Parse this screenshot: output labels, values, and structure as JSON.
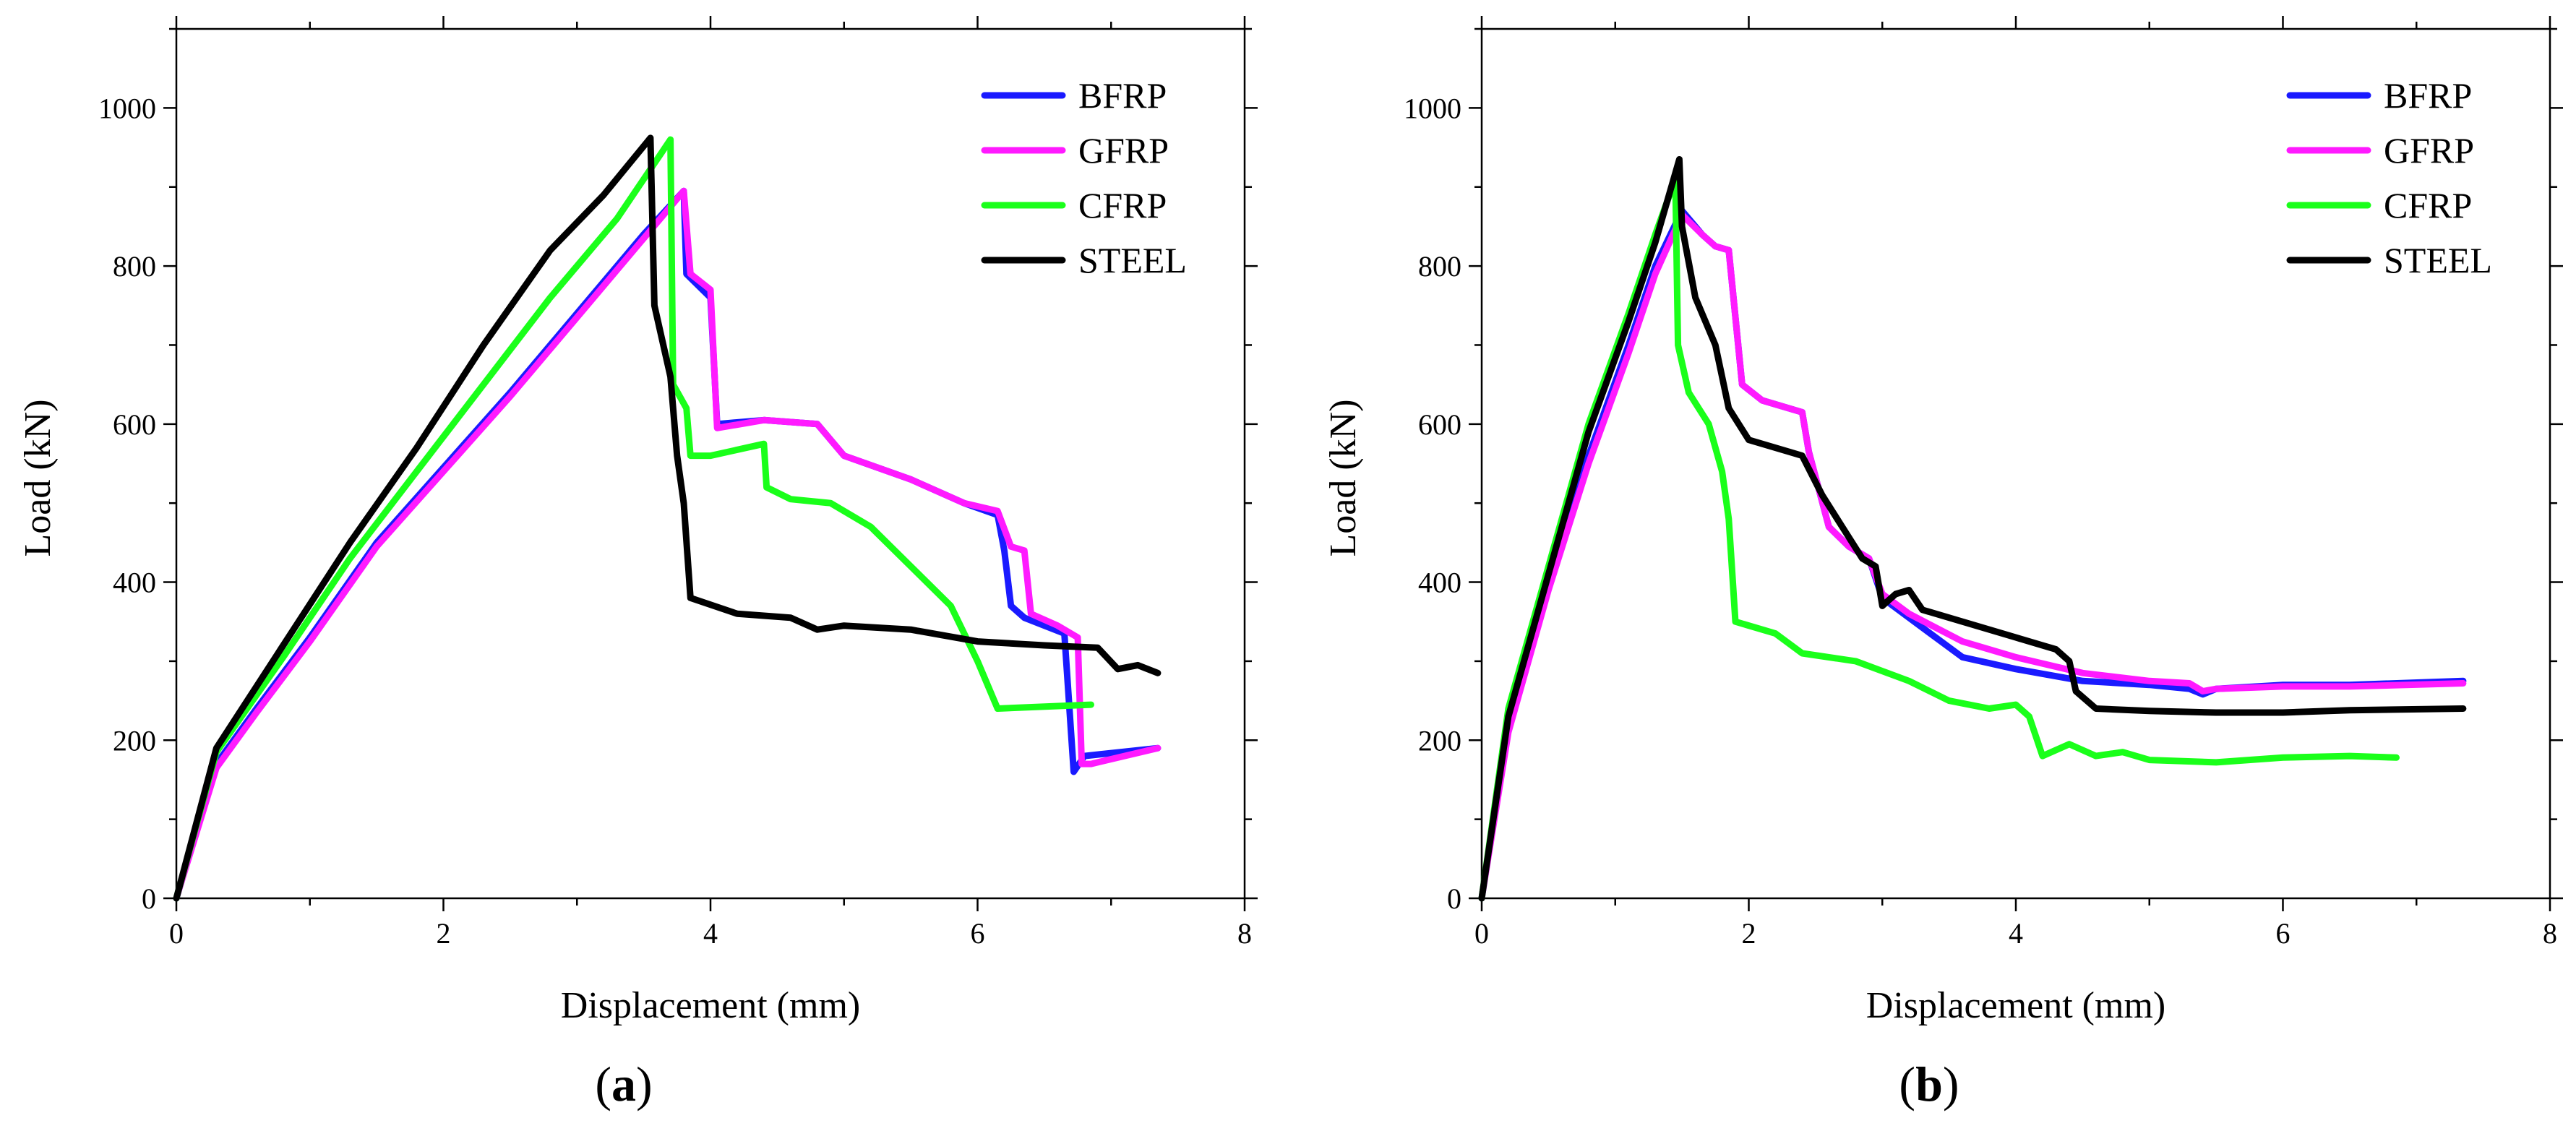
{
  "chart_data": [
    {
      "type": "line",
      "panel_label": "a",
      "xlabel": "Displacement (mm)",
      "ylabel": "Load (kN)",
      "xlim": [
        0,
        8
      ],
      "ylim": [
        0,
        1100
      ],
      "xticks": [
        "0",
        "2",
        "4",
        "6",
        "8"
      ],
      "yticks": [
        "0",
        "200",
        "400",
        "600",
        "800",
        "1000"
      ],
      "legend_position": "top-right",
      "series": [
        {
          "name": "BFRP",
          "color": "#1a1aff",
          "points": [
            [
              0,
              0
            ],
            [
              0.3,
              170
            ],
            [
              0.6,
              240
            ],
            [
              1.0,
              330
            ],
            [
              1.5,
              450
            ],
            [
              2.0,
              545
            ],
            [
              2.5,
              640
            ],
            [
              3.0,
              740
            ],
            [
              3.5,
              840
            ],
            [
              3.8,
              895
            ],
            [
              3.82,
              790
            ],
            [
              4.0,
              760
            ],
            [
              4.05,
              600
            ],
            [
              4.4,
              605
            ],
            [
              4.8,
              600
            ],
            [
              5.0,
              560
            ],
            [
              5.5,
              530
            ],
            [
              5.9,
              500
            ],
            [
              6.15,
              485
            ],
            [
              6.2,
              440
            ],
            [
              6.25,
              370
            ],
            [
              6.35,
              355
            ],
            [
              6.65,
              335
            ],
            [
              6.72,
              160
            ],
            [
              6.8,
              180
            ],
            [
              7.35,
              190
            ]
          ]
        },
        {
          "name": "GFRP",
          "color": "#ff1aff",
          "points": [
            [
              0,
              0
            ],
            [
              0.3,
              165
            ],
            [
              0.6,
              235
            ],
            [
              1.0,
              325
            ],
            [
              1.5,
              445
            ],
            [
              2.0,
              540
            ],
            [
              2.5,
              635
            ],
            [
              3.0,
              735
            ],
            [
              3.5,
              835
            ],
            [
              3.8,
              895
            ],
            [
              3.85,
              790
            ],
            [
              4.0,
              770
            ],
            [
              4.05,
              595
            ],
            [
              4.4,
              605
            ],
            [
              4.8,
              600
            ],
            [
              5.0,
              560
            ],
            [
              5.5,
              530
            ],
            [
              5.9,
              500
            ],
            [
              6.15,
              490
            ],
            [
              6.25,
              445
            ],
            [
              6.35,
              440
            ],
            [
              6.4,
              360
            ],
            [
              6.6,
              345
            ],
            [
              6.75,
              330
            ],
            [
              6.78,
              170
            ],
            [
              6.85,
              170
            ],
            [
              7.35,
              190
            ]
          ]
        },
        {
          "name": "CFRP",
          "color": "#1aff1a",
          "points": [
            [
              0,
              0
            ],
            [
              0.3,
              185
            ],
            [
              0.8,
              305
            ],
            [
              1.3,
              430
            ],
            [
              1.8,
              540
            ],
            [
              2.3,
              650
            ],
            [
              2.8,
              760
            ],
            [
              3.3,
              860
            ],
            [
              3.7,
              960
            ],
            [
              3.72,
              650
            ],
            [
              3.82,
              620
            ],
            [
              3.85,
              560
            ],
            [
              4.0,
              560
            ],
            [
              4.4,
              575
            ],
            [
              4.42,
              520
            ],
            [
              4.6,
              505
            ],
            [
              4.9,
              500
            ],
            [
              5.2,
              470
            ],
            [
              5.5,
              420
            ],
            [
              5.8,
              370
            ],
            [
              6.0,
              300
            ],
            [
              6.15,
              240
            ],
            [
              6.85,
              245
            ]
          ]
        },
        {
          "name": "STEEL",
          "color": "#000000",
          "points": [
            [
              0,
              0
            ],
            [
              0.3,
              190
            ],
            [
              0.8,
              320
            ],
            [
              1.3,
              450
            ],
            [
              1.8,
              570
            ],
            [
              2.3,
              700
            ],
            [
              2.8,
              820
            ],
            [
              3.2,
              890
            ],
            [
              3.55,
              962
            ],
            [
              3.58,
              750
            ],
            [
              3.7,
              660
            ],
            [
              3.75,
              560
            ],
            [
              3.8,
              500
            ],
            [
              3.85,
              380
            ],
            [
              4.2,
              360
            ],
            [
              4.6,
              355
            ],
            [
              4.8,
              340
            ],
            [
              5.0,
              345
            ],
            [
              5.5,
              340
            ],
            [
              6.0,
              325
            ],
            [
              6.5,
              320
            ],
            [
              6.9,
              317
            ],
            [
              7.05,
              290
            ],
            [
              7.2,
              295
            ],
            [
              7.35,
              285
            ]
          ]
        }
      ]
    },
    {
      "type": "line",
      "panel_label": "b",
      "xlabel": "Displacement (mm)",
      "ylabel": "Load (kN)",
      "xlim": [
        0,
        8
      ],
      "ylim": [
        0,
        1100
      ],
      "xticks": [
        "0",
        "2",
        "4",
        "6",
        "8"
      ],
      "yticks": [
        "0",
        "200",
        "400",
        "600",
        "800",
        "1000"
      ],
      "legend_position": "top-right",
      "series": [
        {
          "name": "BFRP",
          "color": "#1a1aff",
          "points": [
            [
              0,
              0
            ],
            [
              0.2,
              220
            ],
            [
              0.5,
              400
            ],
            [
              0.8,
              560
            ],
            [
              1.1,
              700
            ],
            [
              1.3,
              800
            ],
            [
              1.5,
              870
            ],
            [
              1.65,
              840
            ],
            [
              1.75,
              825
            ],
            [
              1.85,
              820
            ],
            [
              1.95,
              650
            ],
            [
              2.1,
              630
            ],
            [
              2.4,
              615
            ],
            [
              2.45,
              565
            ],
            [
              2.6,
              470
            ],
            [
              2.75,
              445
            ],
            [
              2.9,
              430
            ],
            [
              3.0,
              380
            ],
            [
              3.2,
              355
            ],
            [
              3.6,
              305
            ],
            [
              4.0,
              290
            ],
            [
              4.5,
              275
            ],
            [
              5.0,
              270
            ],
            [
              5.3,
              265
            ],
            [
              5.4,
              258
            ],
            [
              5.5,
              265
            ],
            [
              6.0,
              270
            ],
            [
              6.5,
              270
            ],
            [
              7.35,
              275
            ]
          ]
        },
        {
          "name": "GFRP",
          "color": "#ff1aff",
          "points": [
            [
              0,
              0
            ],
            [
              0.2,
              210
            ],
            [
              0.5,
              390
            ],
            [
              0.8,
              550
            ],
            [
              1.1,
              690
            ],
            [
              1.3,
              790
            ],
            [
              1.5,
              865
            ],
            [
              1.65,
              840
            ],
            [
              1.75,
              825
            ],
            [
              1.85,
              820
            ],
            [
              1.95,
              650
            ],
            [
              2.1,
              630
            ],
            [
              2.4,
              615
            ],
            [
              2.45,
              565
            ],
            [
              2.6,
              470
            ],
            [
              2.75,
              445
            ],
            [
              2.9,
              430
            ],
            [
              3.0,
              385
            ],
            [
              3.2,
              360
            ],
            [
              3.6,
              325
            ],
            [
              4.0,
              305
            ],
            [
              4.5,
              285
            ],
            [
              5.0,
              275
            ],
            [
              5.3,
              272
            ],
            [
              5.4,
              262
            ],
            [
              5.5,
              265
            ],
            [
              6.0,
              268
            ],
            [
              6.5,
              268
            ],
            [
              7.35,
              272
            ]
          ]
        },
        {
          "name": "CFRP",
          "color": "#1aff1a",
          "points": [
            [
              0,
              0
            ],
            [
              0.2,
              240
            ],
            [
              0.5,
              420
            ],
            [
              0.8,
              600
            ],
            [
              1.1,
              740
            ],
            [
              1.3,
              840
            ],
            [
              1.45,
              910
            ],
            [
              1.47,
              700
            ],
            [
              1.55,
              640
            ],
            [
              1.7,
              600
            ],
            [
              1.8,
              540
            ],
            [
              1.85,
              480
            ],
            [
              1.9,
              350
            ],
            [
              2.2,
              335
            ],
            [
              2.4,
              310
            ],
            [
              2.8,
              300
            ],
            [
              3.2,
              275
            ],
            [
              3.5,
              250
            ],
            [
              3.8,
              240
            ],
            [
              4.0,
              245
            ],
            [
              4.1,
              230
            ],
            [
              4.2,
              180
            ],
            [
              4.4,
              195
            ],
            [
              4.6,
              180
            ],
            [
              4.8,
              185
            ],
            [
              5.0,
              175
            ],
            [
              5.5,
              172
            ],
            [
              6.0,
              178
            ],
            [
              6.5,
              180
            ],
            [
              6.85,
              178
            ]
          ]
        },
        {
          "name": "STEEL",
          "color": "#000000",
          "points": [
            [
              0,
              0
            ],
            [
              0.2,
              230
            ],
            [
              0.5,
              410
            ],
            [
              0.8,
              590
            ],
            [
              1.1,
              730
            ],
            [
              1.3,
              830
            ],
            [
              1.48,
              935
            ],
            [
              1.5,
              850
            ],
            [
              1.6,
              760
            ],
            [
              1.75,
              700
            ],
            [
              1.85,
              620
            ],
            [
              2.0,
              580
            ],
            [
              2.3,
              565
            ],
            [
              2.4,
              560
            ],
            [
              2.55,
              510
            ],
            [
              2.7,
              470
            ],
            [
              2.85,
              430
            ],
            [
              2.95,
              420
            ],
            [
              3.0,
              370
            ],
            [
              3.1,
              385
            ],
            [
              3.2,
              390
            ],
            [
              3.3,
              365
            ],
            [
              3.6,
              350
            ],
            [
              4.0,
              330
            ],
            [
              4.3,
              315
            ],
            [
              4.4,
              300
            ],
            [
              4.45,
              262
            ],
            [
              4.6,
              240
            ],
            [
              5.0,
              237
            ],
            [
              5.5,
              235
            ],
            [
              6.0,
              235
            ],
            [
              6.5,
              238
            ],
            [
              7.35,
              240
            ]
          ]
        }
      ]
    }
  ]
}
